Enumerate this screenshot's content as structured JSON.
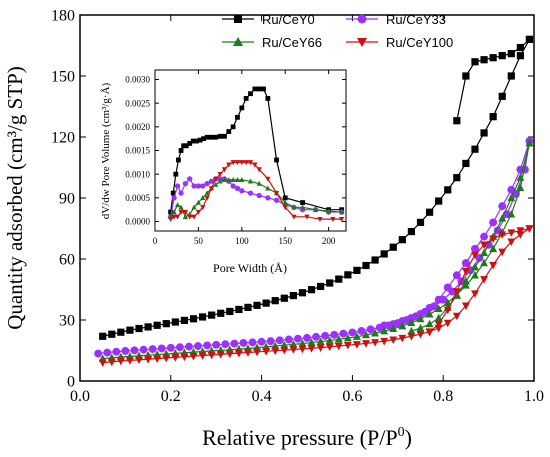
{
  "chart_data": [
    {
      "type": "line",
      "xlabel": "Relative pressure (P/P",
      "xlabel_sup": "0",
      "xlabel_end": ")",
      "ylabel": "Quantity adsorbed (cm³/g STP)",
      "xlim": [
        0.0,
        1.0
      ],
      "ylim": [
        0,
        180
      ],
      "xticks": [
        "0.0",
        "0.2",
        "0.4",
        "0.6",
        "0.8",
        "1.0"
      ],
      "yticks": [
        "0",
        "30",
        "60",
        "90",
        "120",
        "150",
        "180"
      ],
      "legend_position": "top",
      "series": [
        {
          "name": "Ru/CeY0",
          "color": "#000000",
          "marker": "square",
          "adsorption": {
            "x": [
              0.05,
              0.07,
              0.09,
              0.11,
              0.13,
              0.15,
              0.17,
              0.19,
              0.21,
              0.23,
              0.25,
              0.27,
              0.29,
              0.31,
              0.33,
              0.35,
              0.37,
              0.39,
              0.41,
              0.43,
              0.45,
              0.47,
              0.49,
              0.51,
              0.53,
              0.55,
              0.57,
              0.59,
              0.61,
              0.63,
              0.65,
              0.67,
              0.69,
              0.71,
              0.73,
              0.75,
              0.77,
              0.79,
              0.81,
              0.83,
              0.85,
              0.87,
              0.89,
              0.91,
              0.93,
              0.95,
              0.97,
              0.99
            ],
            "y": [
              22,
              23,
              24,
              25,
              25.8,
              26.6,
              27.4,
              28.2,
              29,
              29.8,
              30.6,
              31.5,
              32.4,
              33.3,
              34.2,
              35.2,
              36.2,
              37.2,
              38.3,
              39.5,
              40.7,
              42,
              43.4,
              44.9,
              46.5,
              48.2,
              50.1,
              52.2,
              54.4,
              56.8,
              59.5,
              62.5,
              65.8,
              69.5,
              73.5,
              78,
              83,
              88.5,
              94,
              100,
              107,
              114,
              122,
              130,
              140,
              150,
              160,
              168
            ]
          },
          "desorption": {
            "x": [
              0.99,
              0.97,
              0.95,
              0.93,
              0.91,
              0.89,
              0.87,
              0.85,
              0.83
            ],
            "y": [
              168,
              164,
              161,
              160,
              159,
              158,
              157,
              150,
              128
            ]
          }
        },
        {
          "name": "Ru/CeY33",
          "color": "#9b30ff",
          "marker": "circle",
          "adsorption": {
            "x": [
              0.04,
              0.06,
              0.08,
              0.1,
              0.12,
              0.14,
              0.16,
              0.18,
              0.2,
              0.22,
              0.24,
              0.26,
              0.28,
              0.3,
              0.32,
              0.34,
              0.36,
              0.38,
              0.4,
              0.42,
              0.44,
              0.46,
              0.48,
              0.5,
              0.52,
              0.54,
              0.56,
              0.58,
              0.6,
              0.62,
              0.64,
              0.66,
              0.68,
              0.7,
              0.72,
              0.74,
              0.76,
              0.78,
              0.8,
              0.82,
              0.84,
              0.86,
              0.88,
              0.9,
              0.92,
              0.94,
              0.96,
              0.98,
              0.99
            ],
            "y": [
              13.5,
              14,
              14.4,
              14.8,
              15.1,
              15.4,
              15.7,
              16,
              16.3,
              16.6,
              16.9,
              17.2,
              17.5,
              17.8,
              18.1,
              18.4,
              18.7,
              19,
              19.3,
              19.6,
              20,
              20.4,
              20.8,
              21.2,
              21.7,
              22.2,
              22.7,
              23.3,
              23.9,
              24.6,
              25.4,
              26.3,
              27.3,
              28.5,
              30,
              31.8,
              34,
              36.8,
              40,
              44,
              49,
              54.5,
              60.5,
              67,
              74,
              82,
              92,
              104,
              118
            ]
          },
          "desorption": {
            "x": [
              0.99,
              0.97,
              0.95,
              0.93,
              0.91,
              0.89,
              0.87,
              0.85,
              0.83,
              0.81,
              0.79,
              0.77,
              0.75,
              0.73,
              0.71,
              0.69,
              0.67
            ],
            "y": [
              118,
              104,
              94,
              86,
              78,
              71,
              65,
              58,
              52,
              46,
              40,
              36,
              33,
              31,
              29.5,
              28,
              27.3
            ]
          }
        },
        {
          "name": "Ru/CeY66",
          "color": "#1f7a1f",
          "marker": "triangle-up",
          "adsorption": {
            "x": [
              0.05,
              0.07,
              0.09,
              0.11,
              0.13,
              0.15,
              0.17,
              0.19,
              0.21,
              0.23,
              0.25,
              0.27,
              0.29,
              0.31,
              0.33,
              0.35,
              0.37,
              0.39,
              0.41,
              0.43,
              0.45,
              0.47,
              0.49,
              0.51,
              0.53,
              0.55,
              0.57,
              0.59,
              0.61,
              0.63,
              0.65,
              0.67,
              0.69,
              0.71,
              0.73,
              0.75,
              0.77,
              0.79,
              0.81,
              0.83,
              0.85,
              0.87,
              0.89,
              0.91,
              0.93,
              0.95,
              0.97,
              0.99
            ],
            "y": [
              11,
              11.4,
              11.8,
              12.1,
              12.4,
              12.7,
              13,
              13.3,
              13.6,
              13.9,
              14.2,
              14.5,
              14.8,
              15.1,
              15.4,
              15.7,
              16,
              16.4,
              16.8,
              17.2,
              17.6,
              18,
              18.4,
              18.9,
              19.4,
              19.9,
              20.5,
              21.1,
              21.8,
              22.6,
              23.5,
              24.5,
              25.7,
              27,
              28.6,
              30.5,
              32.8,
              35.5,
              38.5,
              42.5,
              47,
              52,
              58,
              65,
              73,
              82,
              95,
              117
            ]
          },
          "desorption": {
            "x": [
              0.99,
              0.97,
              0.95,
              0.93,
              0.91,
              0.89,
              0.87,
              0.85,
              0.83,
              0.81,
              0.79,
              0.77,
              0.75,
              0.73
            ],
            "y": [
              117,
              100,
              90,
              80,
              71,
              63,
              56,
              49,
              42,
              36,
              31,
              28,
              26,
              24.5
            ]
          }
        },
        {
          "name": "Ru/CeY100",
          "color": "#cc1111",
          "marker": "triangle-down",
          "adsorption": {
            "x": [
              0.05,
              0.07,
              0.09,
              0.11,
              0.13,
              0.15,
              0.17,
              0.19,
              0.21,
              0.23,
              0.25,
              0.27,
              0.29,
              0.31,
              0.33,
              0.35,
              0.37,
              0.39,
              0.41,
              0.43,
              0.45,
              0.47,
              0.49,
              0.51,
              0.53,
              0.55,
              0.57,
              0.59,
              0.61,
              0.63,
              0.65,
              0.67,
              0.69,
              0.71,
              0.73,
              0.75,
              0.77,
              0.79,
              0.81,
              0.83,
              0.85,
              0.87,
              0.89,
              0.91,
              0.93,
              0.95,
              0.97,
              0.99
            ],
            "y": [
              9,
              9.4,
              9.8,
              10.1,
              10.4,
              10.7,
              11,
              11.3,
              11.6,
              11.9,
              12.2,
              12.5,
              12.8,
              13.1,
              13.4,
              13.7,
              14,
              14.3,
              14.6,
              14.9,
              15.2,
              15.5,
              15.8,
              16.1,
              16.4,
              16.8,
              17.2,
              17.6,
              18,
              18.5,
              19,
              19.6,
              20.3,
              21.1,
              22,
              23,
              24.3,
              26,
              28.5,
              32,
              37,
              43,
              50,
              57,
              63.5,
              68.5,
              72,
              75
            ]
          },
          "desorption": {
            "x": [
              0.99,
              0.97,
              0.95,
              0.93,
              0.91,
              0.89,
              0.87,
              0.85,
              0.83,
              0.81,
              0.79,
              0.77
            ],
            "y": [
              75,
              74,
              73,
              72,
              70,
              67,
              62,
              54,
              44,
              35,
              28,
              24
            ]
          }
        }
      ]
    },
    {
      "type": "line",
      "inset": true,
      "xlabel": "Pore Width (Å)",
      "ylabel": "dV/dw Pore Volume (cm³/g·Å)",
      "xlim": [
        0,
        220
      ],
      "ylim": [
        -0.0002,
        0.0032
      ],
      "xticks": [
        "0",
        "50",
        "100",
        "150",
        "200"
      ],
      "yticks": [
        "0.0000",
        "0.0005",
        "0.0010",
        "0.0015",
        "0.0020",
        "0.0025",
        "0.0030"
      ],
      "series": [
        {
          "name": "Ru/CeY0",
          "color": "#000000",
          "marker": "square",
          "x": [
            18,
            21,
            24,
            27,
            30,
            33,
            36,
            40,
            44,
            48,
            52,
            56,
            60,
            65,
            70,
            75,
            80,
            85,
            90,
            95,
            100,
            105,
            110,
            115,
            120,
            125,
            130,
            140,
            150,
            170,
            200,
            215
          ],
          "y": [
            0.0002,
            0.0006,
            0.001,
            0.0013,
            0.0015,
            0.0016,
            0.0016,
            0.00165,
            0.0017,
            0.0017,
            0.00172,
            0.00175,
            0.00178,
            0.00178,
            0.00178,
            0.0018,
            0.0018,
            0.0019,
            0.002,
            0.0022,
            0.0024,
            0.0026,
            0.0027,
            0.0028,
            0.0028,
            0.0028,
            0.0026,
            0.0013,
            0.0005,
            0.0004,
            0.00025,
            0.00025
          ]
        },
        {
          "name": "Ru/CeY33",
          "color": "#9b30ff",
          "marker": "circle",
          "x": [
            18,
            22,
            26,
            30,
            35,
            40,
            45,
            50,
            55,
            60,
            65,
            70,
            75,
            80,
            85,
            90,
            95,
            100,
            110,
            120,
            130,
            140,
            150,
            160,
            170,
            185,
            200,
            215
          ],
          "y": [
            0.0001,
            0.0005,
            0.00075,
            0.0006,
            0.0008,
            0.0009,
            0.00075,
            0.00075,
            0.00075,
            0.0008,
            0.00085,
            0.0009,
            0.0009,
            0.0009,
            0.00085,
            0.00075,
            0.0007,
            0.00065,
            0.0006,
            0.00055,
            0.0005,
            0.00045,
            0.00035,
            0.0003,
            0.00025,
            0.00025,
            0.0002,
            0.0002
          ]
        },
        {
          "name": "Ru/CeY66",
          "color": "#1f7a1f",
          "marker": "triangle-up",
          "x": [
            18,
            22,
            26,
            30,
            35,
            40,
            45,
            50,
            55,
            60,
            65,
            70,
            75,
            80,
            85,
            90,
            95,
            100,
            110,
            120,
            130,
            140,
            150,
            160,
            170,
            185,
            200,
            215
          ],
          "y": [
            0.0001,
            0.0002,
            0.00035,
            0.0003,
            0.0001,
            0.00015,
            0.0003,
            0.0004,
            0.0005,
            0.0006,
            0.0007,
            0.00078,
            0.00085,
            0.00088,
            0.00088,
            0.00088,
            0.00088,
            0.00088,
            0.00085,
            0.0008,
            0.0007,
            0.0006,
            0.0004,
            0.0003,
            0.0003,
            0.00025,
            0.00022,
            0.0002
          ]
        },
        {
          "name": "Ru/CeY100",
          "color": "#cc1111",
          "marker": "triangle-down",
          "x": [
            18,
            22,
            26,
            30,
            35,
            40,
            45,
            50,
            55,
            60,
            65,
            70,
            75,
            80,
            85,
            90,
            95,
            100,
            105,
            110,
            115,
            120,
            130,
            140,
            150,
            160,
            175,
            190,
            205,
            215
          ],
          "y": [
            5e-05,
            0.0001,
            0.0001,
            0.0002,
            0.0002,
            0.0001,
            0.0001,
            0.0002,
            0.0003,
            0.0005,
            0.0007,
            0.0009,
            0.001,
            0.0011,
            0.0012,
            0.00125,
            0.00125,
            0.00125,
            0.00125,
            0.00125,
            0.0012,
            0.0011,
            0.0009,
            0.0006,
            0.0003,
            0.0001,
            0.0001,
            5e-05,
            5e-05,
            5e-05
          ]
        }
      ]
    }
  ]
}
